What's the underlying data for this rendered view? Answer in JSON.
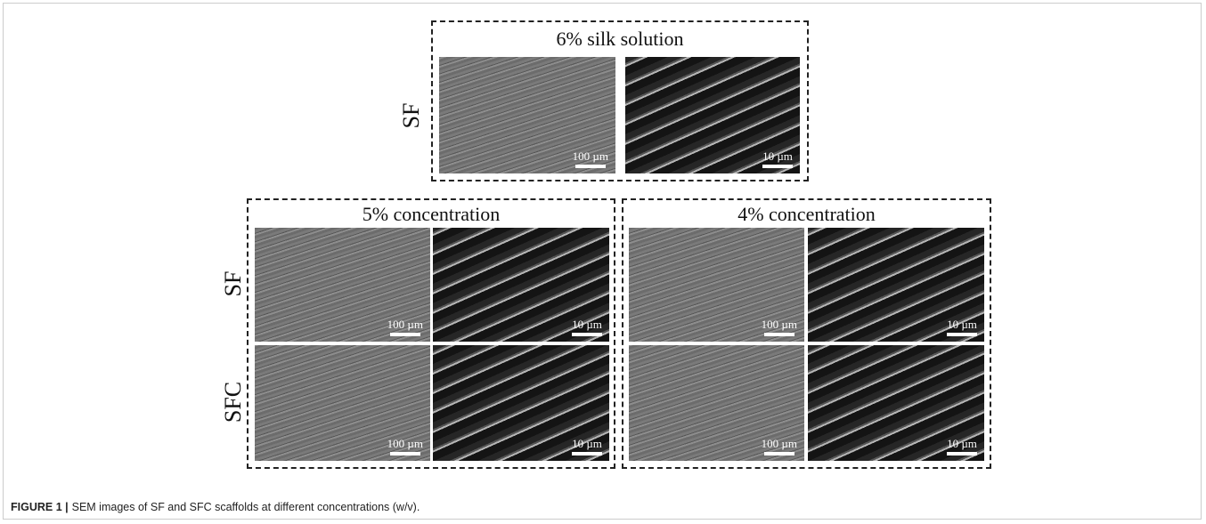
{
  "figure": {
    "top": {
      "title": "6% silk solution",
      "row_label": "SF",
      "scale_bars": [
        "100 µm",
        "10 µm"
      ]
    },
    "bottom": {
      "row_labels": [
        "SF",
        "SFC"
      ],
      "panels": [
        {
          "title": "5% concentration",
          "scale_bars": [
            [
              "100 µm",
              "10 µm"
            ],
            [
              "100 µm",
              "10 µm"
            ]
          ]
        },
        {
          "title": "4% concentration",
          "scale_bars": [
            [
              "100 µm",
              "10 µm"
            ],
            [
              "100 µm",
              "10 µm"
            ]
          ]
        }
      ]
    },
    "caption": {
      "label": "FIGURE 1 |",
      "text": "SEM images of SF and SFC scaffolds at different concentrations (w/v)."
    }
  }
}
